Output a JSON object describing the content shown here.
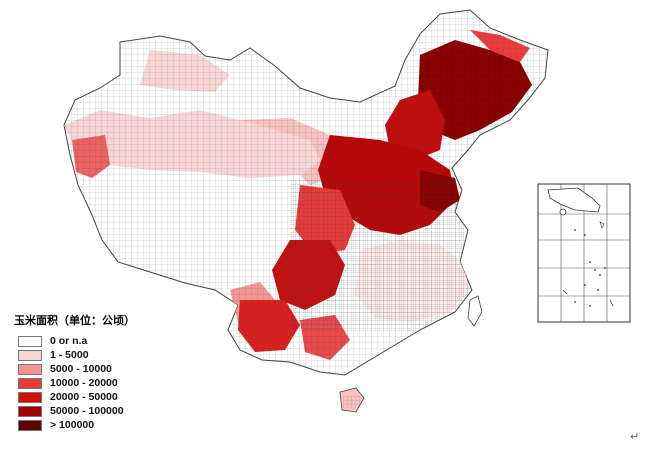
{
  "legend": {
    "title": "玉米面积（单位：公顷）",
    "classes": [
      {
        "label": "0 or n.a",
        "color": "#ffffff"
      },
      {
        "label": "1 - 5000",
        "color": "#f9d6d6"
      },
      {
        "label": "5000 - 10000",
        "color": "#f09494"
      },
      {
        "label": "10000 - 20000",
        "color": "#ea3b3b"
      },
      {
        "label": "20000 - 50000",
        "color": "#d40d0d"
      },
      {
        "label": "50000 - 100000",
        "color": "#a30000"
      },
      {
        "label": "> 100000",
        "color": "#5e0000"
      }
    ]
  },
  "map": {
    "subject": "China county-level maize sown area",
    "inset": "South China Sea islands",
    "colors": {
      "background": "#ffffff",
      "boundary": "#555555",
      "high_intensity_regions": "#a30000"
    }
  },
  "return_mark": "↵"
}
